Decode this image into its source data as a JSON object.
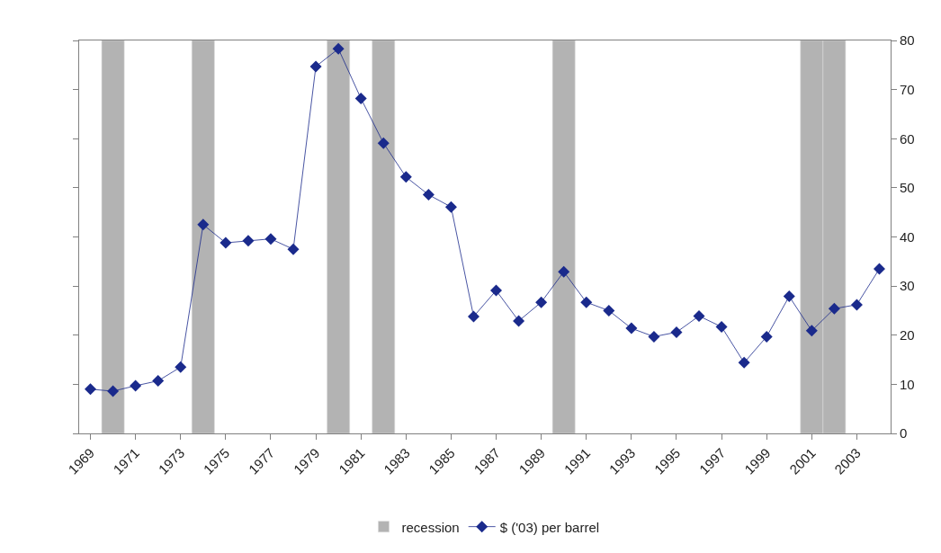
{
  "chart_data": {
    "type": "line",
    "x": [
      1969,
      1970,
      1971,
      1972,
      1973,
      1974,
      1975,
      1976,
      1977,
      1978,
      1979,
      1980,
      1981,
      1982,
      1983,
      1984,
      1985,
      1986,
      1987,
      1988,
      1989,
      1990,
      1991,
      1992,
      1993,
      1994,
      1995,
      1996,
      1997,
      1998,
      1999,
      2000,
      2001,
      2002,
      2003,
      2004
    ],
    "series": [
      {
        "name": "$ ('03) per barrel",
        "color": "#1a2a8c",
        "values": [
          9.0,
          8.6,
          9.7,
          10.7,
          13.5,
          42.5,
          38.8,
          39.2,
          39.6,
          37.5,
          74.7,
          78.3,
          68.2,
          59.1,
          52.2,
          48.6,
          46.1,
          23.8,
          29.1,
          22.9,
          26.7,
          32.9,
          26.7,
          25.0,
          21.4,
          19.7,
          20.6,
          23.9,
          21.7,
          14.4,
          19.7,
          27.9,
          20.9,
          25.4,
          26.2,
          33.5
        ]
      }
    ],
    "xlim": [
      1968.5,
      2004.5
    ],
    "xticks": [
      1969,
      1971,
      1973,
      1975,
      1977,
      1979,
      1981,
      1983,
      1985,
      1987,
      1989,
      1991,
      1993,
      1995,
      1997,
      1999,
      2001,
      2003
    ],
    "ylim": [
      0,
      80
    ],
    "yticks": [
      0,
      10,
      20,
      30,
      40,
      50,
      60,
      70,
      80
    ],
    "bands": [
      {
        "axis": "x",
        "from": 1969.5,
        "to": 1970.5,
        "label": "recession",
        "color": "#b3b3b3"
      },
      {
        "axis": "x",
        "from": 1973.5,
        "to": 1974.5,
        "color": "#b3b3b3"
      },
      {
        "axis": "x",
        "from": 1979.5,
        "to": 1980.5,
        "color": "#b3b3b3"
      },
      {
        "axis": "x",
        "from": 1981.5,
        "to": 1982.5,
        "color": "#b3b3b3"
      },
      {
        "axis": "x",
        "from": 1989.5,
        "to": 1990.5,
        "color": "#b3b3b3"
      },
      {
        "axis": "x",
        "from": 2000.5,
        "to": 2001.5,
        "color": "#b3b3b3"
      },
      {
        "axis": "x",
        "from": 2001.5,
        "to": 2002.5,
        "color": "#b3b3b3"
      }
    ],
    "marker": "diamond",
    "line_style": "solid",
    "grid": false,
    "legend": "bottom"
  }
}
